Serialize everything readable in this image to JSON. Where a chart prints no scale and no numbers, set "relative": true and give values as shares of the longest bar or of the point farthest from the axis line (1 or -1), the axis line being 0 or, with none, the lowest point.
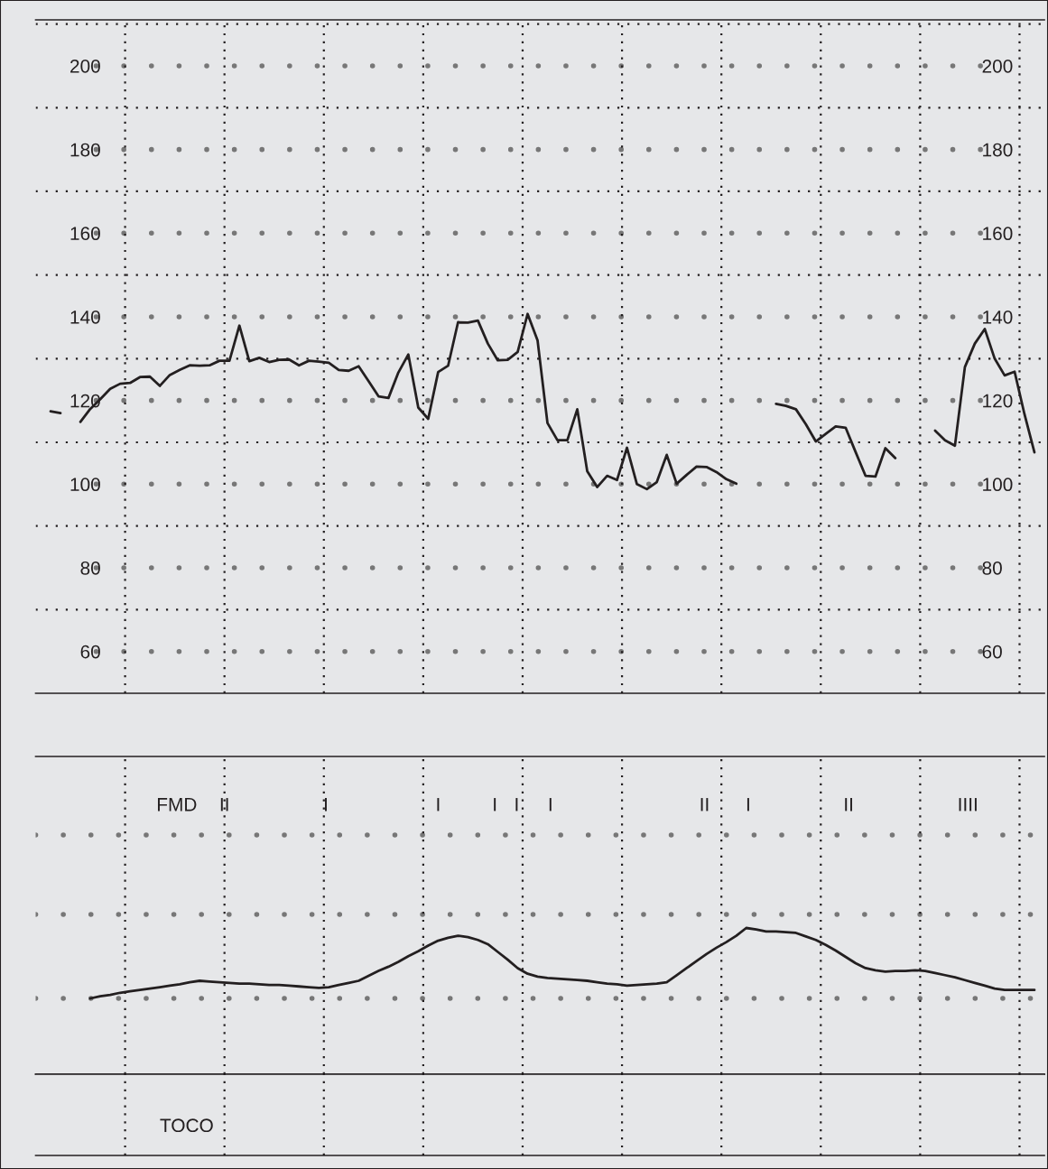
{
  "chart_data": [
    {
      "type": "line",
      "grid": true,
      "tick_labels": "y",
      "line_style": "solid",
      "categories": [
        null,
        null,
        null,
        null,
        null,
        null,
        null,
        null,
        null,
        null,
        null,
        null,
        null,
        null,
        null,
        null,
        null,
        null,
        null,
        null,
        null,
        null,
        null,
        null,
        null,
        null,
        null,
        null,
        null,
        null,
        null,
        null,
        null,
        null,
        null,
        null,
        null,
        null,
        null,
        null,
        null,
        null,
        null,
        null,
        null,
        null,
        null,
        null,
        null,
        null,
        null,
        null,
        null,
        null,
        null,
        null,
        null,
        null,
        null,
        null,
        null,
        null,
        null,
        null,
        null,
        null,
        null,
        null,
        null,
        null,
        null,
        null,
        null,
        null,
        null,
        null,
        null,
        null,
        null,
        null,
        null,
        null,
        null,
        null,
        null,
        null,
        null,
        null,
        null,
        null,
        null,
        null,
        null,
        null,
        null,
        null,
        null,
        null,
        null,
        null
      ],
      "ylim": [
        50,
        211
      ],
      "yticks": [
        60,
        {
          "value": 70,
          "label": null
        },
        80,
        {
          "value": 90,
          "label": null
        },
        100,
        {
          "value": 110,
          "label": null
        },
        120,
        {
          "value": 130,
          "label": null
        },
        140,
        {
          "value": 150,
          "label": null
        },
        160,
        {
          "value": 170,
          "label": null
        },
        180,
        {
          "value": 190,
          "label": null
        },
        200,
        {
          "value": 210,
          "label": null
        }
      ],
      "y2lim": [
        50,
        211
      ],
      "y2ticks": [
        60,
        80,
        100,
        120,
        140,
        160,
        180,
        200
      ],
      "series": [
        {
          "color": "#231f20",
          "values": [
            117.4,
            117,
            null,
            null,
            null,
            null,
            null,
            null,
            null,
            null,
            null,
            null,
            null,
            null,
            null,
            null,
            null,
            null,
            null,
            null,
            null,
            null,
            null,
            null,
            null,
            null,
            null,
            null,
            null,
            null,
            null,
            null,
            null,
            null,
            null,
            null,
            null,
            null,
            null,
            null,
            null,
            null,
            null,
            null,
            null,
            null,
            null,
            null,
            null,
            null,
            null,
            null,
            null,
            null,
            null,
            null,
            null,
            null,
            null,
            null,
            null,
            null,
            null,
            null,
            null,
            null,
            null,
            null,
            null,
            null,
            null,
            null,
            null,
            null,
            null,
            null,
            null,
            null,
            null,
            null,
            null,
            null,
            null,
            null,
            null,
            null,
            null,
            null,
            null,
            null,
            null,
            null,
            null,
            null,
            null,
            null,
            null,
            null,
            null,
            null
          ]
        },
        {
          "color": "#231f20",
          "values": [
            null,
            null,
            null,
            114.9,
            118,
            120.3,
            122.8,
            124,
            124.2,
            125.6,
            125.7,
            123.5,
            126.1,
            127.3,
            128.4,
            128.3,
            128.4,
            129.5,
            129.5,
            137.9,
            129.4,
            130.2,
            129.2,
            129.7,
            129.8,
            128.4,
            129.5,
            129.3,
            129,
            127.3,
            127.1,
            128.2,
            124.6,
            121,
            120.6,
            126.7,
            131,
            118.3,
            115.6,
            126.8,
            128.3,
            138.7,
            138.6,
            139.1,
            133.6,
            129.6,
            129.7,
            131.6,
            140.7,
            134.4,
            114.6,
            110.5,
            110.5,
            117.9,
            103.1,
            99.3,
            102,
            101,
            108.7,
            100,
            98.8,
            100.5,
            107,
            100.1,
            102.2,
            104.2,
            104.1,
            102.9,
            101.2,
            100.1,
            null,
            null,
            null,
            null,
            null,
            null,
            null,
            null,
            null,
            null,
            null,
            null,
            null,
            null,
            null,
            null,
            null,
            null,
            null,
            null,
            null,
            null,
            null,
            null,
            null,
            null,
            null,
            null,
            null,
            null
          ]
        },
        {
          "color": "#231f20",
          "values": [
            null,
            null,
            null,
            null,
            null,
            null,
            null,
            null,
            null,
            null,
            null,
            null,
            null,
            null,
            null,
            null,
            null,
            null,
            null,
            null,
            null,
            null,
            null,
            null,
            null,
            null,
            null,
            null,
            null,
            null,
            null,
            null,
            null,
            null,
            null,
            null,
            null,
            null,
            null,
            null,
            null,
            null,
            null,
            null,
            null,
            null,
            null,
            null,
            null,
            null,
            null,
            null,
            null,
            null,
            null,
            null,
            null,
            null,
            null,
            null,
            null,
            null,
            null,
            null,
            null,
            null,
            null,
            null,
            null,
            null,
            null,
            null,
            null,
            119.2,
            118.7,
            117.9,
            114.3,
            110.2,
            112,
            113.8,
            113.5,
            107.7,
            102,
            101.8,
            108.6,
            106.2,
            null,
            null,
            null,
            null,
            null,
            null,
            null,
            null,
            null,
            null,
            null,
            null,
            null,
            null
          ]
        },
        {
          "color": "#231f20",
          "values": [
            null,
            null,
            null,
            null,
            null,
            null,
            null,
            null,
            null,
            null,
            null,
            null,
            null,
            null,
            null,
            null,
            null,
            null,
            null,
            null,
            null,
            null,
            null,
            null,
            null,
            null,
            null,
            null,
            null,
            null,
            null,
            null,
            null,
            null,
            null,
            null,
            null,
            null,
            null,
            null,
            null,
            null,
            null,
            null,
            null,
            null,
            null,
            null,
            null,
            null,
            null,
            null,
            null,
            null,
            null,
            null,
            null,
            null,
            null,
            null,
            null,
            null,
            null,
            null,
            null,
            null,
            null,
            null,
            null,
            null,
            null,
            null,
            null,
            null,
            null,
            null,
            null,
            null,
            null,
            null,
            null,
            null,
            null,
            null,
            null,
            null,
            null,
            null,
            null,
            112.8,
            110.5,
            109.2,
            128,
            133.6,
            137.1,
            130,
            126,
            126.9,
            116.7,
            107.6
          ]
        }
      ]
    },
    {
      "type": "line",
      "color": "#231f20",
      "relative": true,
      "grid": true,
      "tick_labels": false,
      "line_style": "solid",
      "categories": [
        null,
        null,
        null,
        null,
        null,
        null,
        null,
        null,
        null,
        null,
        null,
        null,
        null,
        null,
        null,
        null,
        null,
        null,
        null,
        null,
        null,
        null,
        null,
        null,
        null,
        null,
        null,
        null,
        null,
        null,
        null,
        null,
        null,
        null,
        null,
        null,
        null,
        null,
        null,
        null,
        null,
        null,
        null,
        null,
        null,
        null,
        null,
        null,
        null,
        null,
        null,
        null,
        null,
        null,
        null,
        null,
        null,
        null,
        null,
        null,
        null,
        null,
        null,
        null,
        null,
        null,
        null,
        null,
        null,
        null,
        null,
        null,
        null,
        null,
        null,
        null,
        null,
        null,
        null,
        null,
        null,
        null,
        null,
        null,
        null,
        null,
        null,
        null,
        null,
        null,
        null,
        null,
        null,
        null,
        null,
        null
      ],
      "values": [
        0,
        0.03,
        0.05,
        0.08,
        0.1,
        0.12,
        0.14,
        0.16,
        0.18,
        0.2,
        0.23,
        0.25,
        0.24,
        0.23,
        0.22,
        0.21,
        0.21,
        0.2,
        0.19,
        0.19,
        0.18,
        0.17,
        0.16,
        0.15,
        0.16,
        0.19,
        0.22,
        0.25,
        0.32,
        0.39,
        0.45,
        0.52,
        0.6,
        0.67,
        0.75,
        0.82,
        0.86,
        0.89,
        0.87,
        0.83,
        0.77,
        0.66,
        0.55,
        0.43,
        0.35,
        0.31,
        0.29,
        0.28,
        0.27,
        0.26,
        0.25,
        0.23,
        0.21,
        0.2,
        0.18,
        0.19,
        0.2,
        0.21,
        0.23,
        0.33,
        0.43,
        0.53,
        0.63,
        0.72,
        0.8,
        0.89,
        1.0,
        0.98,
        0.95,
        0.95,
        0.94,
        0.93,
        0.88,
        0.83,
        0.76,
        0.68,
        0.59,
        0.5,
        0.43,
        0.4,
        0.38,
        0.39,
        0.39,
        0.4,
        0.39,
        0.36,
        0.33,
        0.3,
        0.26,
        0.22,
        0.18,
        0.14,
        0.12,
        0.12,
        0.12,
        0.12
      ],
      "annotations": [
        "FMD",
        "II",
        "I",
        "I",
        "I",
        "I",
        "I",
        "II",
        "I",
        "II",
        "IIII",
        "TOCO"
      ]
    }
  ]
}
